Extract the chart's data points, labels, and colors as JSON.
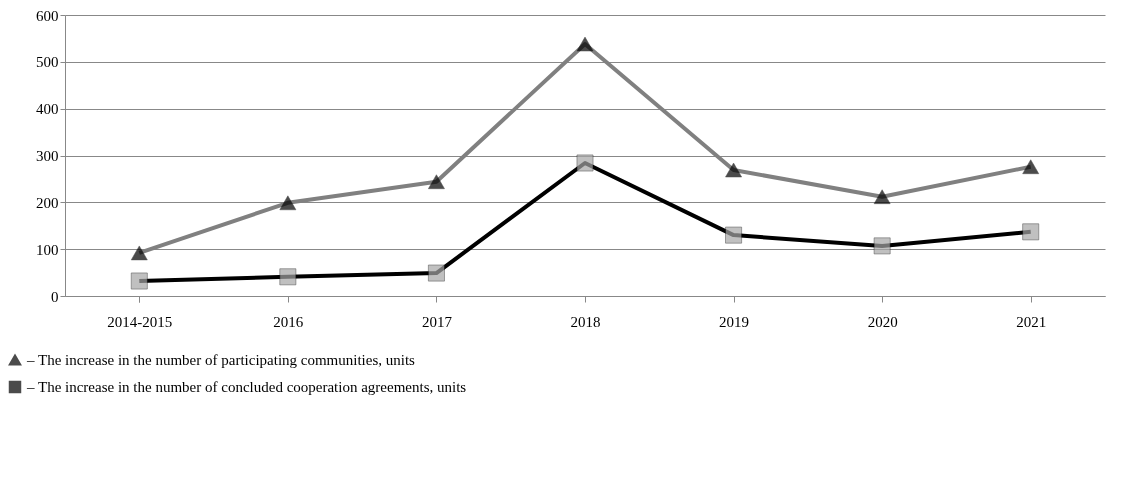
{
  "chart_data": {
    "type": "line",
    "categories": [
      "2014-2015",
      "2016",
      "2017",
      "2018",
      "2019",
      "2020",
      "2021"
    ],
    "series": [
      {
        "name": "– The increase in the number of participating communities, units",
        "color": "#808080",
        "colors": [
          "#000000",
          "#000000",
          "#000000",
          "#000000",
          "#000000",
          "#000000",
          "#000000"
        ],
        "values": [
          92,
          199,
          244,
          538,
          269,
          212,
          276
        ]
      },
      {
        "name": "– The increase in the number of concluded cooperation agreements, units",
        "color": "#000000",
        "marker": "square",
        "colors": [
          "#a6a6a6",
          "#a6a6a6",
          "#a6a6a6",
          "#a6a6a6",
          "#a6a6a6",
          "#a6a6a6",
          "#a6a6a6"
        ],
        "values": [
          32,
          41,
          49,
          284,
          130,
          107,
          137
        ]
      }
    ],
    "ylim": [
      0,
      600
    ],
    "yticks": [
      0,
      100,
      200,
      300,
      400,
      500,
      600
    ],
    "grid": "y",
    "legend": "bottom left",
    "marker": "triangle",
    "line_style": "solid"
  }
}
